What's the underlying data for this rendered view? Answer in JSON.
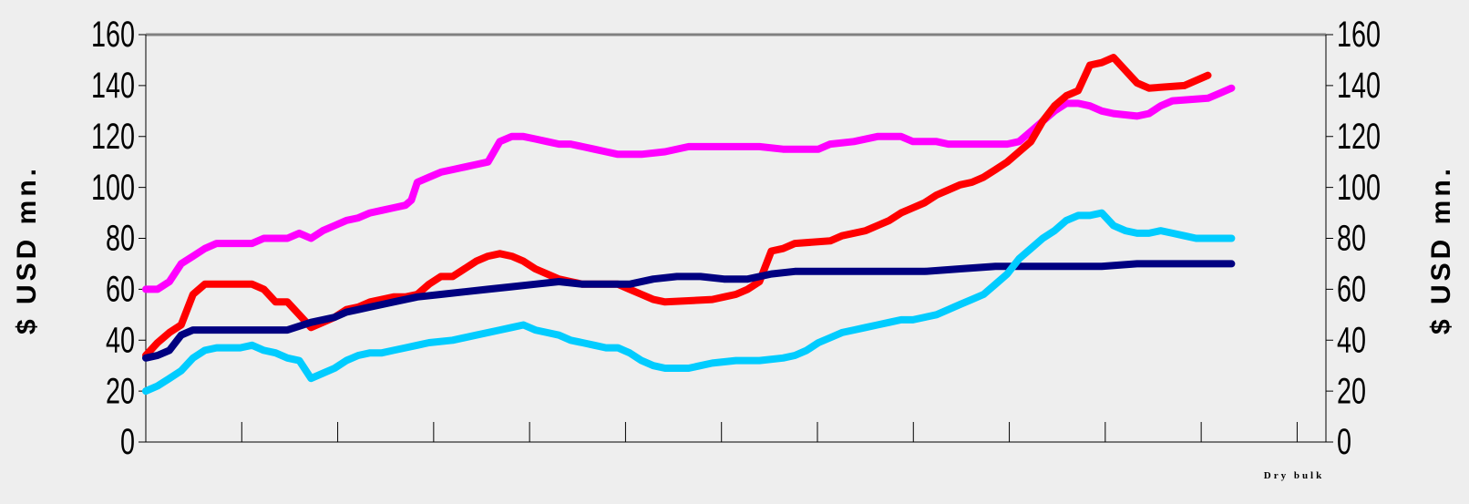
{
  "chart_data": {
    "type": "line",
    "ylabel_left": "$ USD mn.",
    "ylabel_right": "$ USD mn.",
    "ylim": [
      0,
      160
    ],
    "yticks": [
      "0",
      "20",
      "40",
      "60",
      "80",
      "100",
      "120",
      "140",
      "160"
    ],
    "xlabel_annotation": "Dry bulk",
    "x_categories": 12,
    "grid": false,
    "colors": {
      "background": "#eeeeee",
      "frame_top": "#808080",
      "navy": "#000080",
      "red": "#ff0000",
      "magenta": "#ff00ff",
      "cyan": "#00ccff"
    },
    "x_range": [
      0,
      100
    ],
    "series": [
      {
        "color": "#ff00ff",
        "points": [
          [
            0,
            60
          ],
          [
            1,
            60
          ],
          [
            2,
            63
          ],
          [
            3,
            70
          ],
          [
            4,
            73
          ],
          [
            5,
            76
          ],
          [
            6,
            78
          ],
          [
            9,
            78
          ],
          [
            10,
            80
          ],
          [
            12,
            80
          ],
          [
            13,
            82
          ],
          [
            14,
            80
          ],
          [
            15,
            83
          ],
          [
            16,
            85
          ],
          [
            17,
            87
          ],
          [
            18,
            88
          ],
          [
            19,
            90
          ],
          [
            20,
            91
          ],
          [
            21,
            92
          ],
          [
            22,
            93
          ],
          [
            22.5,
            95
          ],
          [
            23,
            102
          ],
          [
            24,
            104
          ],
          [
            25,
            106
          ],
          [
            26,
            107
          ],
          [
            27,
            108
          ],
          [
            28,
            109
          ],
          [
            29,
            110
          ],
          [
            30,
            118
          ],
          [
            31,
            120
          ],
          [
            32,
            120
          ],
          [
            33,
            119
          ],
          [
            34,
            118
          ],
          [
            35,
            117
          ],
          [
            36,
            117
          ],
          [
            37,
            116
          ],
          [
            38,
            115
          ],
          [
            39,
            114
          ],
          [
            40,
            113
          ],
          [
            42,
            113
          ],
          [
            44,
            114
          ],
          [
            46,
            116
          ],
          [
            52,
            116
          ],
          [
            54,
            115
          ],
          [
            57,
            115
          ],
          [
            58,
            117
          ],
          [
            60,
            118
          ],
          [
            62,
            120
          ],
          [
            64,
            120
          ],
          [
            65,
            118
          ],
          [
            67,
            118
          ],
          [
            68,
            117
          ],
          [
            72,
            117
          ],
          [
            73,
            117
          ],
          [
            74,
            118
          ],
          [
            75,
            122
          ],
          [
            76,
            126
          ],
          [
            77,
            130
          ],
          [
            78,
            133
          ],
          [
            79,
            133
          ],
          [
            80,
            132
          ],
          [
            81,
            130
          ],
          [
            82,
            129
          ],
          [
            84,
            128
          ],
          [
            85,
            129
          ],
          [
            86,
            132
          ],
          [
            87,
            134
          ],
          [
            90,
            135
          ],
          [
            91,
            137
          ],
          [
            92,
            139
          ]
        ]
      },
      {
        "color": "#ff0000",
        "points": [
          [
            0,
            34
          ],
          [
            1,
            39
          ],
          [
            2,
            43
          ],
          [
            3,
            46
          ],
          [
            4,
            58
          ],
          [
            5,
            62
          ],
          [
            9,
            62
          ],
          [
            10,
            60
          ],
          [
            11,
            55
          ],
          [
            12,
            55
          ],
          [
            13,
            50
          ],
          [
            14,
            45
          ],
          [
            15,
            47
          ],
          [
            16,
            49
          ],
          [
            17,
            52
          ],
          [
            18,
            53
          ],
          [
            19,
            55
          ],
          [
            20,
            56
          ],
          [
            21,
            57
          ],
          [
            22,
            57
          ],
          [
            23,
            58
          ],
          [
            24,
            62
          ],
          [
            25,
            65
          ],
          [
            26,
            65
          ],
          [
            27,
            68
          ],
          [
            28,
            71
          ],
          [
            29,
            73
          ],
          [
            30,
            74
          ],
          [
            31,
            73
          ],
          [
            32,
            71
          ],
          [
            33,
            68
          ],
          [
            34,
            66
          ],
          [
            35,
            64
          ],
          [
            36,
            63
          ],
          [
            37,
            62
          ],
          [
            40,
            62
          ],
          [
            41,
            60
          ],
          [
            42,
            58
          ],
          [
            43,
            56
          ],
          [
            44,
            55
          ],
          [
            48,
            56
          ],
          [
            49,
            57
          ],
          [
            50,
            58
          ],
          [
            51,
            60
          ],
          [
            52,
            63
          ],
          [
            53,
            75
          ],
          [
            54,
            76
          ],
          [
            55,
            78
          ],
          [
            58,
            79
          ],
          [
            59,
            81
          ],
          [
            61,
            83
          ],
          [
            62,
            85
          ],
          [
            63,
            87
          ],
          [
            64,
            90
          ],
          [
            65,
            92
          ],
          [
            66,
            94
          ],
          [
            67,
            97
          ],
          [
            68,
            99
          ],
          [
            69,
            101
          ],
          [
            70,
            102
          ],
          [
            71,
            104
          ],
          [
            72,
            107
          ],
          [
            73,
            110
          ],
          [
            74,
            114
          ],
          [
            75,
            118
          ],
          [
            76,
            126
          ],
          [
            77,
            132
          ],
          [
            78,
            136
          ],
          [
            79,
            138
          ],
          [
            80,
            148
          ],
          [
            81,
            149
          ],
          [
            82,
            151
          ],
          [
            83,
            146
          ],
          [
            84,
            141
          ],
          [
            85,
            139
          ],
          [
            88,
            140
          ],
          [
            89,
            142
          ],
          [
            90,
            144
          ]
        ]
      },
      {
        "color": "#000080",
        "points": [
          [
            0,
            33
          ],
          [
            1,
            34
          ],
          [
            2,
            36
          ],
          [
            3,
            42
          ],
          [
            4,
            44
          ],
          [
            6,
            44
          ],
          [
            8,
            44
          ],
          [
            10,
            44
          ],
          [
            12,
            44
          ],
          [
            14,
            47
          ],
          [
            15,
            48
          ],
          [
            16,
            49
          ],
          [
            17,
            51
          ],
          [
            18,
            52
          ],
          [
            19,
            53
          ],
          [
            20,
            54
          ],
          [
            21,
            55
          ],
          [
            22,
            56
          ],
          [
            23,
            57
          ],
          [
            25,
            58
          ],
          [
            27,
            59
          ],
          [
            29,
            60
          ],
          [
            31,
            61
          ],
          [
            33,
            62
          ],
          [
            35,
            63
          ],
          [
            37,
            62
          ],
          [
            39,
            62
          ],
          [
            41,
            62
          ],
          [
            43,
            64
          ],
          [
            45,
            65
          ],
          [
            47,
            65
          ],
          [
            49,
            64
          ],
          [
            51,
            64
          ],
          [
            53,
            66
          ],
          [
            55,
            67
          ],
          [
            57,
            67
          ],
          [
            60,
            67
          ],
          [
            63,
            67
          ],
          [
            66,
            67
          ],
          [
            69,
            68
          ],
          [
            72,
            69
          ],
          [
            75,
            69
          ],
          [
            78,
            69
          ],
          [
            81,
            69
          ],
          [
            84,
            70
          ],
          [
            87,
            70
          ],
          [
            90,
            70
          ],
          [
            92,
            70
          ]
        ]
      },
      {
        "color": "#00ccff",
        "points": [
          [
            0,
            20
          ],
          [
            1,
            22
          ],
          [
            2,
            25
          ],
          [
            3,
            28
          ],
          [
            4,
            33
          ],
          [
            5,
            36
          ],
          [
            6,
            37
          ],
          [
            8,
            37
          ],
          [
            9,
            38
          ],
          [
            10,
            36
          ],
          [
            11,
            35
          ],
          [
            12,
            33
          ],
          [
            13,
            32
          ],
          [
            14,
            25
          ],
          [
            15,
            27
          ],
          [
            16,
            29
          ],
          [
            17,
            32
          ],
          [
            18,
            34
          ],
          [
            19,
            35
          ],
          [
            20,
            35
          ],
          [
            21,
            36
          ],
          [
            22,
            37
          ],
          [
            23,
            38
          ],
          [
            24,
            39
          ],
          [
            26,
            40
          ],
          [
            28,
            42
          ],
          [
            30,
            44
          ],
          [
            31,
            45
          ],
          [
            32,
            46
          ],
          [
            33,
            44
          ],
          [
            34,
            43
          ],
          [
            35,
            42
          ],
          [
            36,
            40
          ],
          [
            37,
            39
          ],
          [
            38,
            38
          ],
          [
            39,
            37
          ],
          [
            40,
            37
          ],
          [
            41,
            35
          ],
          [
            42,
            32
          ],
          [
            43,
            30
          ],
          [
            44,
            29
          ],
          [
            46,
            29
          ],
          [
            47,
            30
          ],
          [
            48,
            31
          ],
          [
            50,
            32
          ],
          [
            52,
            32
          ],
          [
            54,
            33
          ],
          [
            55,
            34
          ],
          [
            56,
            36
          ],
          [
            57,
            39
          ],
          [
            58,
            41
          ],
          [
            59,
            43
          ],
          [
            60,
            44
          ],
          [
            61,
            45
          ],
          [
            62,
            46
          ],
          [
            63,
            47
          ],
          [
            64,
            48
          ],
          [
            65,
            48
          ],
          [
            66,
            49
          ],
          [
            67,
            50
          ],
          [
            68,
            52
          ],
          [
            69,
            54
          ],
          [
            70,
            56
          ],
          [
            71,
            58
          ],
          [
            72,
            62
          ],
          [
            73,
            66
          ],
          [
            74,
            72
          ],
          [
            75,
            76
          ],
          [
            76,
            80
          ],
          [
            77,
            83
          ],
          [
            78,
            87
          ],
          [
            79,
            89
          ],
          [
            80,
            89
          ],
          [
            81,
            90
          ],
          [
            82,
            85
          ],
          [
            83,
            83
          ],
          [
            84,
            82
          ],
          [
            85,
            82
          ],
          [
            86,
            83
          ],
          [
            87,
            82
          ],
          [
            88,
            81
          ],
          [
            89,
            80
          ],
          [
            90,
            80
          ],
          [
            91,
            80
          ],
          [
            92,
            80
          ]
        ]
      }
    ]
  }
}
